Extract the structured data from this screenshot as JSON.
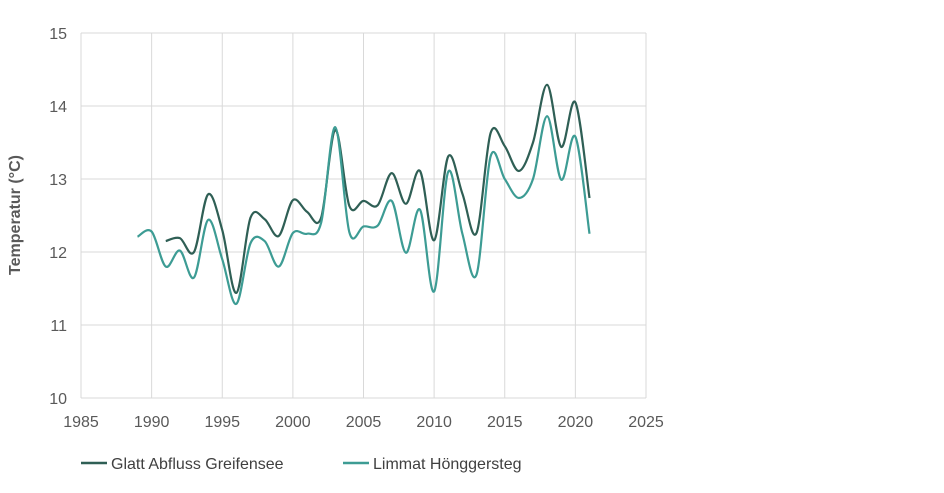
{
  "chart_data": {
    "type": "line",
    "title": "",
    "xlabel": "",
    "ylabel": "Temperatur (°C)",
    "xlim": [
      1985,
      2025
    ],
    "ylim": [
      10,
      15
    ],
    "xticks": [
      "1985",
      "1990",
      "1995",
      "2000",
      "2005",
      "2010",
      "2015",
      "2020",
      "2025"
    ],
    "yticks": [
      "10",
      "11",
      "12",
      "13",
      "14",
      "15"
    ],
    "grid": true,
    "smoothed": true,
    "legend_position": "bottom",
    "series": [
      {
        "name": "Glatt Abfluss Greifensee",
        "color": "#2f5f55",
        "x": [
          1991,
          1992,
          1993,
          1994,
          1995,
          1996,
          1997,
          1998,
          1999,
          2000,
          2001,
          2002,
          2003,
          2004,
          2005,
          2006,
          2007,
          2008,
          2009,
          2010,
          2011,
          2012,
          2013,
          2014,
          2015,
          2016,
          2017,
          2018,
          2019,
          2020,
          2021
        ],
        "y": [
          12.15,
          12.19,
          12.0,
          12.79,
          12.3,
          11.44,
          12.47,
          12.45,
          12.22,
          12.71,
          12.55,
          12.47,
          13.67,
          12.63,
          12.7,
          12.64,
          13.08,
          12.66,
          13.11,
          12.16,
          13.31,
          12.8,
          12.26,
          13.63,
          13.45,
          13.11,
          13.5,
          14.29,
          13.44,
          14.05,
          12.74
        ]
      },
      {
        "name": "Limmat Hönggersteg",
        "color": "#3d9c94",
        "x": [
          1989,
          1990,
          1991,
          1992,
          1993,
          1994,
          1995,
          1996,
          1997,
          1998,
          1999,
          2000,
          2001,
          2002,
          2003,
          2004,
          2005,
          2006,
          2007,
          2008,
          2009,
          2010,
          2011,
          2012,
          2013,
          2014,
          2015,
          2016,
          2017,
          2018,
          2019,
          2020,
          2021
        ],
        "y": [
          12.21,
          12.28,
          11.8,
          12.02,
          11.65,
          12.44,
          11.9,
          11.29,
          12.12,
          12.15,
          11.8,
          12.26,
          12.25,
          12.4,
          13.71,
          12.27,
          12.35,
          12.36,
          12.7,
          11.99,
          12.58,
          11.46,
          13.1,
          12.25,
          11.69,
          13.31,
          13.0,
          12.74,
          13.0,
          13.86,
          12.99,
          13.58,
          12.25
        ]
      }
    ]
  }
}
